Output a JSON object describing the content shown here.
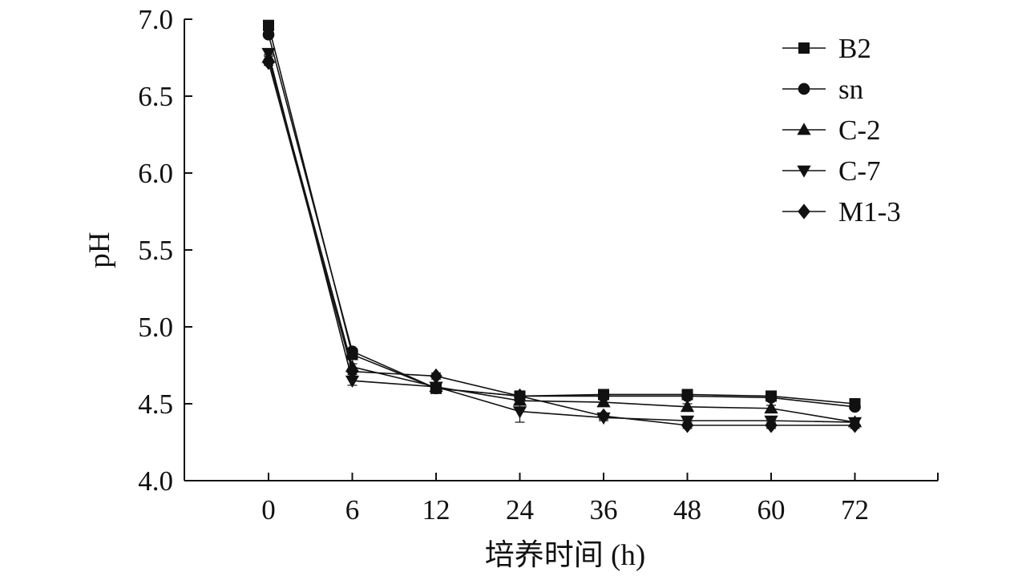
{
  "chart_data": {
    "type": "line",
    "xlabel": "培养时间 (h)",
    "ylabel": "pH",
    "categories": [
      "0",
      "6",
      "12",
      "24",
      "36",
      "48",
      "60",
      "72"
    ],
    "ylim": [
      4.0,
      7.0
    ],
    "yticks": [
      "4.0",
      "4.5",
      "5.0",
      "5.5",
      "6.0",
      "6.5",
      "7.0"
    ],
    "legend_position": "top-right",
    "grid": false,
    "series": [
      {
        "name": "B2",
        "marker": "square",
        "values": [
          6.96,
          4.82,
          4.6,
          4.55,
          4.56,
          4.56,
          4.55,
          4.5
        ],
        "errors": [
          0.02,
          0.02,
          0.02,
          0.03,
          0.03,
          0.02,
          0.02,
          0.02
        ]
      },
      {
        "name": "sn",
        "marker": "circle",
        "values": [
          6.9,
          4.84,
          4.6,
          4.55,
          4.55,
          4.55,
          4.54,
          4.48
        ],
        "errors": [
          0.02,
          0.02,
          0.02,
          0.03,
          0.02,
          0.02,
          0.02,
          0.02
        ]
      },
      {
        "name": "C-2",
        "marker": "triangle-up",
        "values": [
          6.75,
          4.74,
          4.61,
          4.52,
          4.51,
          4.48,
          4.47,
          4.38
        ],
        "errors": [
          0.02,
          0.02,
          0.02,
          0.02,
          0.02,
          0.02,
          0.02,
          0.02
        ]
      },
      {
        "name": "C-7",
        "marker": "triangle-down",
        "values": [
          6.78,
          4.65,
          4.61,
          4.45,
          4.41,
          4.39,
          4.39,
          4.38
        ],
        "errors": [
          0.02,
          0.03,
          0.02,
          0.07,
          0.02,
          0.02,
          0.02,
          0.02
        ]
      },
      {
        "name": "M1-3",
        "marker": "diamond",
        "values": [
          6.72,
          4.71,
          4.68,
          4.55,
          4.42,
          4.36,
          4.36,
          4.36
        ],
        "errors": [
          0.02,
          0.02,
          0.02,
          0.02,
          0.02,
          0.02,
          0.02,
          0.02
        ]
      }
    ]
  }
}
